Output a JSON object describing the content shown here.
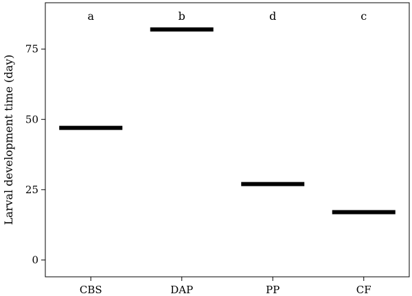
{
  "chart_data": {
    "type": "scatter",
    "title": "",
    "xlabel": "",
    "ylabel": "Larval development time (day)",
    "categories": [
      "CBS",
      "DAP",
      "PP",
      "CF"
    ],
    "values": [
      47,
      82,
      27,
      17
    ],
    "significance_letters": [
      "a",
      "b",
      "d",
      "c"
    ],
    "yticks": [
      0,
      25,
      50,
      75
    ],
    "ylim": [
      -6,
      91.5
    ],
    "grid": false,
    "legend": "none",
    "mark_color": "#000000"
  }
}
